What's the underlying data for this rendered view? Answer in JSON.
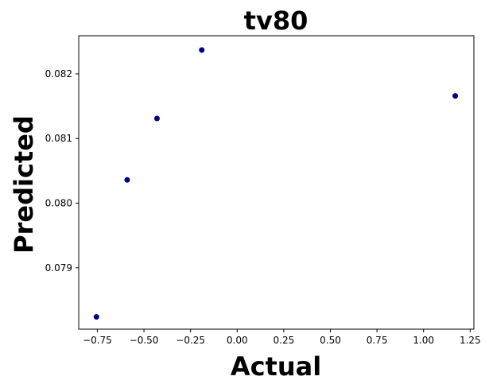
{
  "chart_data": {
    "type": "scatter",
    "title": "tv80",
    "xlabel": "Actual",
    "ylabel": "Predicted",
    "xlim": [
      -0.85,
      1.27
    ],
    "ylim": [
      0.07805,
      0.08259
    ],
    "xticks": [
      -0.75,
      -0.5,
      -0.25,
      0.0,
      0.25,
      0.5,
      0.75,
      1.0,
      1.25
    ],
    "xtick_labels": [
      "−0.75",
      "−0.50",
      "−0.25",
      "0.00",
      "0.25",
      "0.50",
      "0.75",
      "1.00",
      "1.25"
    ],
    "yticks": [
      0.079,
      0.08,
      0.081,
      0.082
    ],
    "ytick_labels": [
      "0.079",
      "0.080",
      "0.081",
      "0.082"
    ],
    "grid": false,
    "marker_color": "#000080",
    "points": [
      {
        "x": -0.755,
        "y": 0.07824
      },
      {
        "x": -0.59,
        "y": 0.08036
      },
      {
        "x": -0.43,
        "y": 0.08131
      },
      {
        "x": -0.19,
        "y": 0.08237
      },
      {
        "x": 1.17,
        "y": 0.08166
      }
    ]
  }
}
